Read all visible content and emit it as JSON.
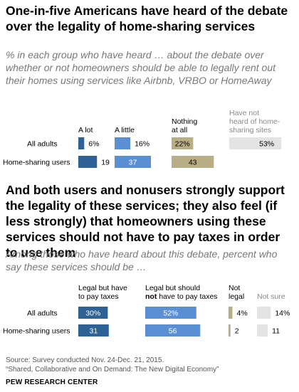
{
  "title1": "One-in-five Americans have heard of the debate over the legality of home-sharing services",
  "subtitle1": "% in each group who have heard … about the debate over whether or not homeowners should be able to legally rent out their homes using services like Airbnb, VRBO or HomeAway",
  "title2": "And both users and nonusers strongly support the legality of these services; they also feel (if less strongly) that homeowners using these services should not have to pay taxes in order to use them",
  "subtitle2": "Among those who have heard about this debate, percent who say these services should be …",
  "source_line1": "Source: Survey conducted Nov. 24-Dec. 21, 2015.",
  "source_line2": "“Shared, Collaborative and On Demand: The New Digital Economy”",
  "org": "PEW RESEARCH CENTER",
  "colors": {
    "dark_blue": "#2e6196",
    "light_blue": "#5b8fd4",
    "tan": "#b9ad85",
    "gray": "#e3e3e3"
  },
  "chart_data": [
    {
      "type": "bar",
      "stacked": false,
      "categories": [
        "All adults",
        "Home-sharing users"
      ],
      "series": [
        {
          "name": "A lot",
          "values": [
            6,
            19
          ],
          "labels": [
            "6%",
            "19"
          ],
          "color": "#2e6196"
        },
        {
          "name": "A little",
          "values": [
            16,
            37
          ],
          "labels": [
            "16%",
            "37"
          ],
          "color": "#5b8fd4"
        },
        {
          "name": "Nothing at all",
          "values": [
            22,
            43
          ],
          "labels": [
            "22%",
            "43"
          ],
          "color": "#b9ad85"
        },
        {
          "name": "Have not heard of home-sharing sites",
          "values": [
            53,
            null
          ],
          "labels": [
            "53%",
            ""
          ],
          "color": "#e3e3e3"
        }
      ],
      "header_lines": [
        [
          "A lot"
        ],
        [
          "A little"
        ],
        [
          "Nothing",
          "at all"
        ],
        [
          "Have not",
          "heard of home-",
          "sharing sites"
        ]
      ]
    },
    {
      "type": "bar",
      "stacked": false,
      "categories": [
        "All adults",
        "Home-sharing users"
      ],
      "series": [
        {
          "name": "Legal but have to pay taxes",
          "values": [
            30,
            31
          ],
          "labels": [
            "30%",
            "31"
          ],
          "color": "#2e6196"
        },
        {
          "name": "Legal but should not have to pay taxes",
          "values": [
            52,
            56
          ],
          "labels": [
            "52%",
            "56"
          ],
          "color": "#5b8fd4"
        },
        {
          "name": "Not legal",
          "values": [
            4,
            2
          ],
          "labels": [
            "4%",
            "2"
          ],
          "color": "#b9ad85"
        },
        {
          "name": "Not sure",
          "values": [
            14,
            11
          ],
          "labels": [
            "14%",
            "11"
          ],
          "color": "#e3e3e3"
        }
      ],
      "header_lines": [
        [
          "Legal but have",
          "to pay taxes"
        ],
        [
          "Legal but should",
          "have to pay taxes"
        ],
        [
          "Not",
          "legal"
        ],
        [
          "Not sure"
        ]
      ],
      "header_bold_word": "not"
    }
  ]
}
